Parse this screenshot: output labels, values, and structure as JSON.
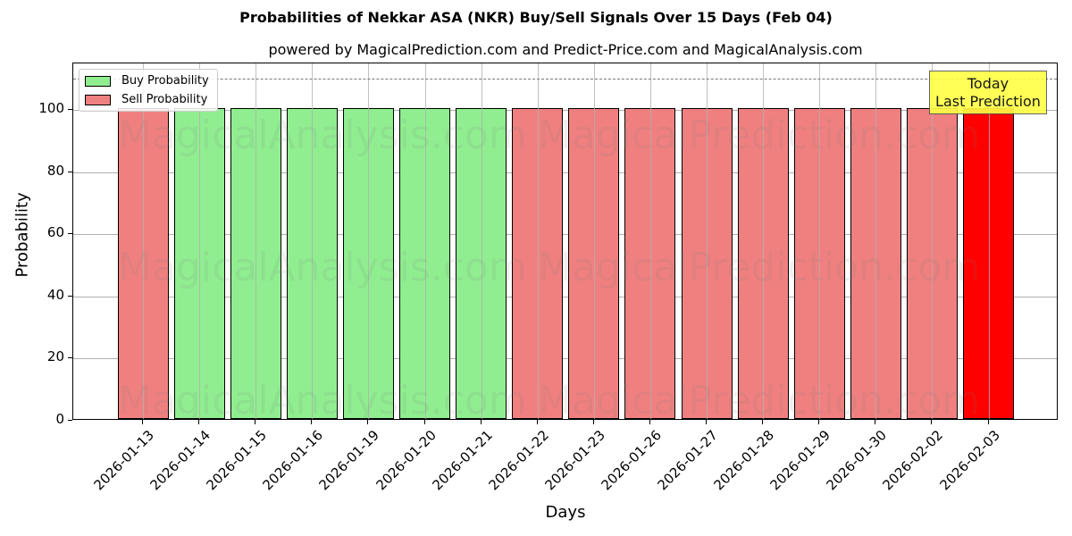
{
  "chart_data": {
    "type": "bar",
    "title": "Probabilities of Nekkar ASA (NKR) Buy/Sell Signals Over 15 Days (Feb 04)",
    "subtitle": "powered by MagicalPrediction.com and Predict-Price.com and MagicalAnalysis.com",
    "xlabel": "Days",
    "ylabel": "Probability",
    "ylim": [
      0,
      115
    ],
    "yticks": [
      0,
      20,
      40,
      60,
      80,
      100
    ],
    "grid": true,
    "legend_position": "upper left",
    "legend": [
      {
        "label": "Buy Probability",
        "color": "#90ee90"
      },
      {
        "label": "Sell Probability",
        "color": "#f08080"
      }
    ],
    "categories": [
      "2026-01-13",
      "2026-01-14",
      "2026-01-15",
      "2026-01-16",
      "2026-01-19",
      "2026-01-20",
      "2026-01-21",
      "2026-01-22",
      "2026-01-23",
      "2026-01-26",
      "2026-01-27",
      "2026-01-28",
      "2026-01-29",
      "2026-01-30",
      "2026-02-02",
      "2026-02-03"
    ],
    "values": [
      100,
      100,
      100,
      100,
      100,
      100,
      100,
      100,
      100,
      100,
      100,
      100,
      100,
      100,
      100,
      100
    ],
    "signal": [
      "Sell",
      "Buy",
      "Buy",
      "Buy",
      "Buy",
      "Buy",
      "Buy",
      "Sell",
      "Sell",
      "Sell",
      "Sell",
      "Sell",
      "Sell",
      "Sell",
      "Sell",
      "Sell"
    ],
    "bar_colors": [
      "#f08080",
      "#90ee90",
      "#90ee90",
      "#90ee90",
      "#90ee90",
      "#90ee90",
      "#90ee90",
      "#f08080",
      "#f08080",
      "#f08080",
      "#f08080",
      "#f08080",
      "#f08080",
      "#f08080",
      "#f08080",
      "#ff0000"
    ],
    "reference_line": {
      "y": 110,
      "style": "dashed",
      "color": "#777777"
    },
    "annotation": {
      "line1": "Today",
      "line2": "Last Prediction",
      "color": "#ffff44"
    },
    "watermarks": [
      "MagicalAnalysis.com",
      "MagicalPrediction.com"
    ]
  }
}
